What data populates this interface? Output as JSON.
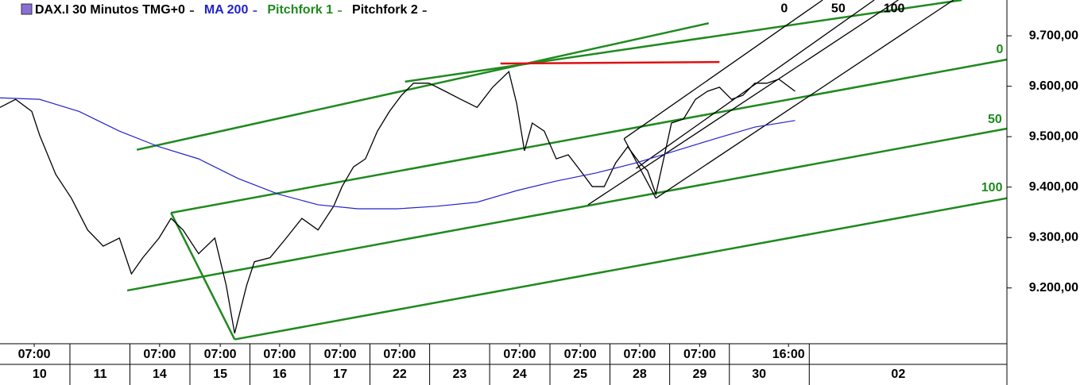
{
  "chart_data": {
    "type": "line",
    "xlim": [
      0,
      16.78
    ],
    "ylim": [
      9091,
      9771
    ],
    "yticks": [
      {
        "value": 9200,
        "label": "9.200,00"
      },
      {
        "value": 9300,
        "label": "9.300,00"
      },
      {
        "value": 9400,
        "label": "9.400,00"
      },
      {
        "value": 9500,
        "label": "9.500,00"
      },
      {
        "value": 9600,
        "label": "9.600,00"
      },
      {
        "value": 9700,
        "label": "9.700,00"
      }
    ],
    "xticks": [
      {
        "value": 0.57,
        "label": "07:00"
      },
      {
        "value": 2.66,
        "label": "07:00"
      },
      {
        "value": 3.67,
        "label": "07:00"
      },
      {
        "value": 4.66,
        "label": "07:00"
      },
      {
        "value": 5.67,
        "label": "07:00"
      },
      {
        "value": 6.66,
        "label": "07:00"
      },
      {
        "value": 8.66,
        "label": "07:00"
      },
      {
        "value": 9.67,
        "label": "07:00"
      },
      {
        "value": 10.66,
        "label": "07:00"
      },
      {
        "value": 11.66,
        "label": "07:00"
      },
      {
        "value": 13.14,
        "label": "16:00"
      }
    ],
    "day_ticks": [
      {
        "value": 0.66,
        "label": "10"
      },
      {
        "value": 1.67,
        "label": "11"
      },
      {
        "value": 2.66,
        "label": "14"
      },
      {
        "value": 3.67,
        "label": "15"
      },
      {
        "value": 4.66,
        "label": "16"
      },
      {
        "value": 5.67,
        "label": "17"
      },
      {
        "value": 6.66,
        "label": "22"
      },
      {
        "value": 7.66,
        "label": "23"
      },
      {
        "value": 8.66,
        "label": "24"
      },
      {
        "value": 9.67,
        "label": "25"
      },
      {
        "value": 10.66,
        "label": "28"
      },
      {
        "value": 11.66,
        "label": "29"
      },
      {
        "value": 12.65,
        "label": "30"
      },
      {
        "value": 14.97,
        "label": "02"
      }
    ],
    "series": [
      {
        "name": "DAX.I 30 Minutos TMG+0",
        "color": "#000000",
        "x": [
          0,
          0.26,
          0.53,
          0.66,
          0.93,
          1.19,
          1.46,
          1.72,
          1.99,
          2.19,
          2.38,
          2.65,
          2.85,
          3.05,
          3.31,
          3.58,
          3.77,
          3.91,
          4.11,
          4.24,
          4.5,
          4.77,
          5.03,
          5.3,
          5.56,
          5.7,
          5.89,
          6.09,
          6.29,
          6.49,
          6.69,
          6.89,
          7.15,
          7.42,
          7.68,
          7.95,
          8.21,
          8.48,
          8.61,
          8.74,
          8.87,
          9.07,
          9.27,
          9.47,
          9.67,
          9.87,
          10.07,
          10.26,
          10.46,
          10.66,
          10.79,
          10.93,
          11.06,
          11.19,
          11.39,
          11.59,
          11.79,
          11.99,
          12.19,
          12.38,
          12.58,
          12.78,
          12.98,
          13.25
        ],
        "values": [
          9558,
          9574,
          9550,
          9503,
          9425,
          9378,
          9315,
          9283,
          9299,
          9228,
          9260,
          9299,
          9338,
          9315,
          9268,
          9299,
          9205,
          9110,
          9205,
          9252,
          9260,
          9299,
          9338,
          9315,
          9362,
          9401,
          9440,
          9456,
          9511,
          9550,
          9582,
          9606,
          9606,
          9590,
          9574,
          9558,
          9598,
          9629,
          9566,
          9472,
          9527,
          9511,
          9456,
          9464,
          9433,
          9401,
          9401,
          9448,
          9480,
          9448,
          9433,
          9386,
          9456,
          9527,
          9535,
          9574,
          9590,
          9598,
          9574,
          9582,
          9606,
          9606,
          9614,
          9590
        ]
      },
      {
        "name": "MA 200",
        "color": "#2222cc",
        "x": [
          0,
          0.66,
          1.32,
          1.99,
          2.65,
          3.31,
          3.97,
          4.64,
          5.3,
          5.96,
          6.62,
          7.28,
          7.95,
          8.61,
          9.27,
          9.93,
          10.6,
          11.26,
          11.92,
          12.58,
          13.25
        ],
        "values": [
          9577,
          9574,
          9550,
          9511,
          9480,
          9456,
          9417,
          9386,
          9365,
          9357,
          9357,
          9362,
          9370,
          9393,
          9412,
          9428,
          9448,
          9472,
          9496,
          9519,
          9532
        ]
      }
    ],
    "pitchforks": [
      {
        "name": "Pitchfork 1",
        "color": "#1e8a1e",
        "lines": [
          {
            "x": [
              2.28,
              11.81
            ],
            "y": [
              9474,
              9725
            ]
          },
          {
            "x": [
              6.75,
              16.03
            ],
            "y": [
              9609,
              9771
            ]
          },
          {
            "x": [
              2.85,
              16.78
            ],
            "y": [
              9349,
              9653
            ]
          },
          {
            "x": [
              2.12,
              16.78
            ],
            "y": [
              9195,
              9516
            ]
          },
          {
            "x": [
              3.91,
              16.78
            ],
            "y": [
              9098,
              9378
            ]
          },
          {
            "x": [
              2.85,
              3.91
            ],
            "y": [
              9349,
              9098
            ]
          }
        ],
        "level_labels": [
          {
            "text": "0",
            "x": 16.66,
            "y": 9672
          },
          {
            "text": "50",
            "x": 16.58,
            "y": 9534
          },
          {
            "text": "100",
            "x": 16.53,
            "y": 9398
          }
        ]
      },
      {
        "name": "Pitchfork 2",
        "color": "#000000",
        "lines": [
          {
            "x": [
              10.4,
              10.93
            ],
            "y": [
              9496,
              9378
            ]
          },
          {
            "x": [
              10.4,
              13.71
            ],
            "y": [
              9496,
              9771
            ]
          },
          {
            "x": [
              10.6,
              14.57
            ],
            "y": [
              9437,
              9771
            ]
          },
          {
            "x": [
              9.8,
              14.97
            ],
            "y": [
              9365,
              9771
            ]
          },
          {
            "x": [
              10.93,
              15.89
            ],
            "y": [
              9378,
              9771
            ]
          }
        ],
        "level_labels": [
          {
            "text": "0",
            "x": 13.07,
            "y": 9753
          },
          {
            "text": "50",
            "x": 13.97,
            "y": 9753
          },
          {
            "text": "100",
            "x": 14.9,
            "y": 9753
          }
        ]
      }
    ],
    "hlines": [
      {
        "color": "#dd1111",
        "x": [
          8.34,
          11.99
        ],
        "y": [
          9645,
          9648
        ]
      }
    ]
  }
}
